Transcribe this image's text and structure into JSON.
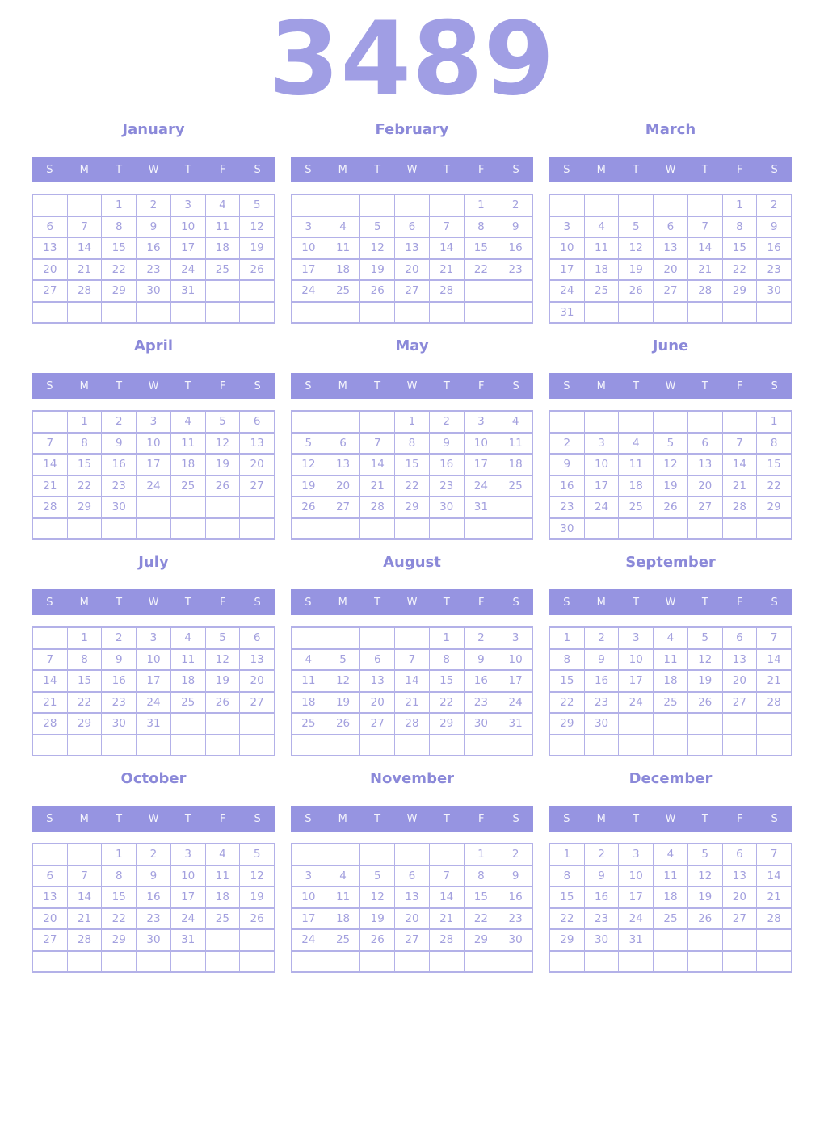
{
  "year": "3489",
  "weekday_headers": [
    "S",
    "M",
    "T",
    "W",
    "T",
    "F",
    "S"
  ],
  "colors": {
    "background": "#ffffff",
    "year_text": "#a09ee4",
    "month_title_text": "#8b89d9",
    "weekday_band_background": "#9694e1",
    "weekday_band_text": "#f5f5fc",
    "date_text": "#a3a0de",
    "grid_border": "#b3b1e8"
  },
  "months": [
    {
      "name": "January",
      "weeks": [
        [
          "",
          "",
          "1",
          "2",
          "3",
          "4",
          "5"
        ],
        [
          "6",
          "7",
          "8",
          "9",
          "10",
          "11",
          "12"
        ],
        [
          "13",
          "14",
          "15",
          "16",
          "17",
          "18",
          "19"
        ],
        [
          "20",
          "21",
          "22",
          "23",
          "24",
          "25",
          "26"
        ],
        [
          "27",
          "28",
          "29",
          "30",
          "31",
          "",
          ""
        ],
        [
          "",
          "",
          "",
          "",
          "",
          "",
          ""
        ]
      ]
    },
    {
      "name": "February",
      "weeks": [
        [
          "",
          "",
          "",
          "",
          "",
          "1",
          "2"
        ],
        [
          "3",
          "4",
          "5",
          "6",
          "7",
          "8",
          "9"
        ],
        [
          "10",
          "11",
          "12",
          "13",
          "14",
          "15",
          "16"
        ],
        [
          "17",
          "18",
          "19",
          "20",
          "21",
          "22",
          "23"
        ],
        [
          "24",
          "25",
          "26",
          "27",
          "28",
          "",
          ""
        ],
        [
          "",
          "",
          "",
          "",
          "",
          "",
          ""
        ]
      ]
    },
    {
      "name": "March",
      "weeks": [
        [
          "",
          "",
          "",
          "",
          "",
          "1",
          "2"
        ],
        [
          "3",
          "4",
          "5",
          "6",
          "7",
          "8",
          "9"
        ],
        [
          "10",
          "11",
          "12",
          "13",
          "14",
          "15",
          "16"
        ],
        [
          "17",
          "18",
          "19",
          "20",
          "21",
          "22",
          "23"
        ],
        [
          "24",
          "25",
          "26",
          "27",
          "28",
          "29",
          "30"
        ],
        [
          "31",
          "",
          "",
          "",
          "",
          "",
          ""
        ]
      ]
    },
    {
      "name": "April",
      "weeks": [
        [
          "",
          "1",
          "2",
          "3",
          "4",
          "5",
          "6"
        ],
        [
          "7",
          "8",
          "9",
          "10",
          "11",
          "12",
          "13"
        ],
        [
          "14",
          "15",
          "16",
          "17",
          "18",
          "19",
          "20"
        ],
        [
          "21",
          "22",
          "23",
          "24",
          "25",
          "26",
          "27"
        ],
        [
          "28",
          "29",
          "30",
          "",
          "",
          "",
          ""
        ],
        [
          "",
          "",
          "",
          "",
          "",
          "",
          ""
        ]
      ]
    },
    {
      "name": "May",
      "weeks": [
        [
          "",
          "",
          "",
          "1",
          "2",
          "3",
          "4"
        ],
        [
          "5",
          "6",
          "7",
          "8",
          "9",
          "10",
          "11"
        ],
        [
          "12",
          "13",
          "14",
          "15",
          "16",
          "17",
          "18"
        ],
        [
          "19",
          "20",
          "21",
          "22",
          "23",
          "24",
          "25"
        ],
        [
          "26",
          "27",
          "28",
          "29",
          "30",
          "31",
          ""
        ],
        [
          "",
          "",
          "",
          "",
          "",
          "",
          ""
        ]
      ]
    },
    {
      "name": "June",
      "weeks": [
        [
          "",
          "",
          "",
          "",
          "",
          "",
          "1"
        ],
        [
          "2",
          "3",
          "4",
          "5",
          "6",
          "7",
          "8"
        ],
        [
          "9",
          "10",
          "11",
          "12",
          "13",
          "14",
          "15"
        ],
        [
          "16",
          "17",
          "18",
          "19",
          "20",
          "21",
          "22"
        ],
        [
          "23",
          "24",
          "25",
          "26",
          "27",
          "28",
          "29"
        ],
        [
          "30",
          "",
          "",
          "",
          "",
          "",
          ""
        ]
      ]
    },
    {
      "name": "July",
      "weeks": [
        [
          "",
          "1",
          "2",
          "3",
          "4",
          "5",
          "6"
        ],
        [
          "7",
          "8",
          "9",
          "10",
          "11",
          "12",
          "13"
        ],
        [
          "14",
          "15",
          "16",
          "17",
          "18",
          "19",
          "20"
        ],
        [
          "21",
          "22",
          "23",
          "24",
          "25",
          "26",
          "27"
        ],
        [
          "28",
          "29",
          "30",
          "31",
          "",
          "",
          ""
        ],
        [
          "",
          "",
          "",
          "",
          "",
          "",
          ""
        ]
      ]
    },
    {
      "name": "August",
      "weeks": [
        [
          "",
          "",
          "",
          "",
          "1",
          "2",
          "3"
        ],
        [
          "4",
          "5",
          "6",
          "7",
          "8",
          "9",
          "10"
        ],
        [
          "11",
          "12",
          "13",
          "14",
          "15",
          "16",
          "17"
        ],
        [
          "18",
          "19",
          "20",
          "21",
          "22",
          "23",
          "24"
        ],
        [
          "25",
          "26",
          "27",
          "28",
          "29",
          "30",
          "31"
        ],
        [
          "",
          "",
          "",
          "",
          "",
          "",
          ""
        ]
      ]
    },
    {
      "name": "September",
      "weeks": [
        [
          "1",
          "2",
          "3",
          "4",
          "5",
          "6",
          "7"
        ],
        [
          "8",
          "9",
          "10",
          "11",
          "12",
          "13",
          "14"
        ],
        [
          "15",
          "16",
          "17",
          "18",
          "19",
          "20",
          "21"
        ],
        [
          "22",
          "23",
          "24",
          "25",
          "26",
          "27",
          "28"
        ],
        [
          "29",
          "30",
          "",
          "",
          "",
          "",
          ""
        ],
        [
          "",
          "",
          "",
          "",
          "",
          "",
          ""
        ]
      ]
    },
    {
      "name": "October",
      "weeks": [
        [
          "",
          "",
          "1",
          "2",
          "3",
          "4",
          "5"
        ],
        [
          "6",
          "7",
          "8",
          "9",
          "10",
          "11",
          "12"
        ],
        [
          "13",
          "14",
          "15",
          "16",
          "17",
          "18",
          "19"
        ],
        [
          "20",
          "21",
          "22",
          "23",
          "24",
          "25",
          "26"
        ],
        [
          "27",
          "28",
          "29",
          "30",
          "31",
          "",
          ""
        ],
        [
          "",
          "",
          "",
          "",
          "",
          "",
          ""
        ]
      ]
    },
    {
      "name": "November",
      "weeks": [
        [
          "",
          "",
          "",
          "",
          "",
          "1",
          "2"
        ],
        [
          "3",
          "4",
          "5",
          "6",
          "7",
          "8",
          "9"
        ],
        [
          "10",
          "11",
          "12",
          "13",
          "14",
          "15",
          "16"
        ],
        [
          "17",
          "18",
          "19",
          "20",
          "21",
          "22",
          "23"
        ],
        [
          "24",
          "25",
          "26",
          "27",
          "28",
          "29",
          "30"
        ],
        [
          "",
          "",
          "",
          "",
          "",
          "",
          ""
        ]
      ]
    },
    {
      "name": "December",
      "weeks": [
        [
          "1",
          "2",
          "3",
          "4",
          "5",
          "6",
          "7"
        ],
        [
          "8",
          "9",
          "10",
          "11",
          "12",
          "13",
          "14"
        ],
        [
          "15",
          "16",
          "17",
          "18",
          "19",
          "20",
          "21"
        ],
        [
          "22",
          "23",
          "24",
          "25",
          "26",
          "27",
          "28"
        ],
        [
          "29",
          "30",
          "31",
          "",
          "",
          "",
          ""
        ],
        [
          "",
          "",
          "",
          "",
          "",
          "",
          ""
        ]
      ]
    }
  ]
}
